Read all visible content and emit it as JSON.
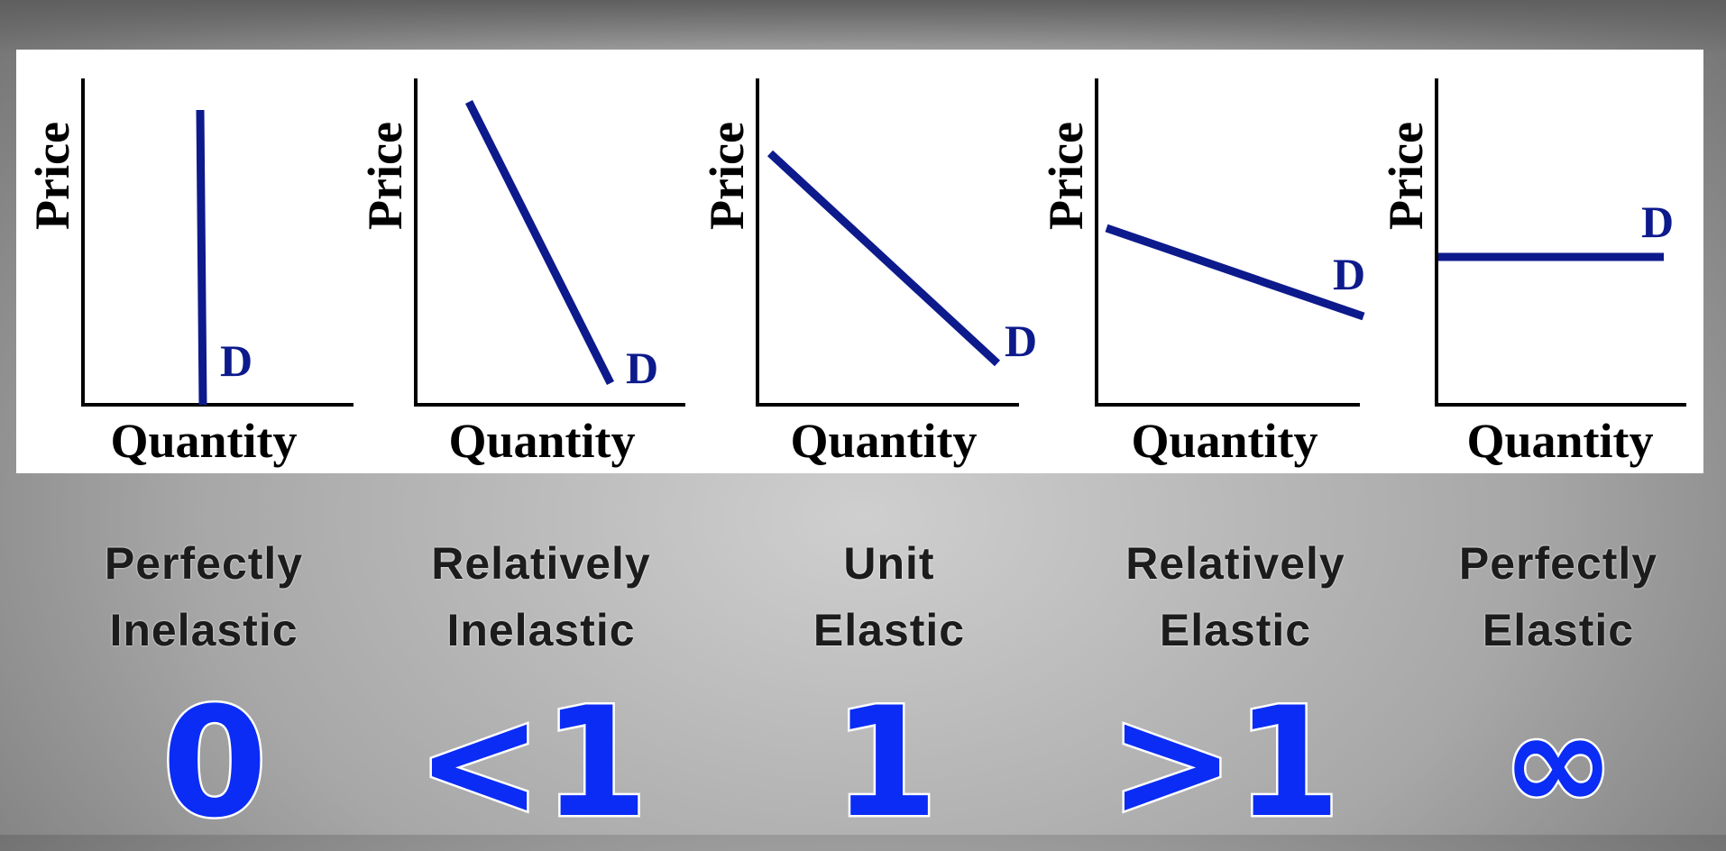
{
  "axes": {
    "y_label": "Price",
    "x_label": "Quantity"
  },
  "curve_label": "D",
  "curve_color": "#0d1a8c",
  "value_color": "#0a2cf5",
  "panels": [
    {
      "caption_line1": "Perfectly",
      "caption_line2": "Inelastic",
      "value": "0"
    },
    {
      "caption_line1": "Relatively",
      "caption_line2": "Inelastic",
      "value": "<1"
    },
    {
      "caption_line1": "Unit",
      "caption_line2": "Elastic",
      "value": "1"
    },
    {
      "caption_line1": "Relatively",
      "caption_line2": "Elastic",
      "value": ">1"
    },
    {
      "caption_line1": "Perfectly",
      "caption_line2": "Elastic",
      "value": "∞"
    }
  ]
}
